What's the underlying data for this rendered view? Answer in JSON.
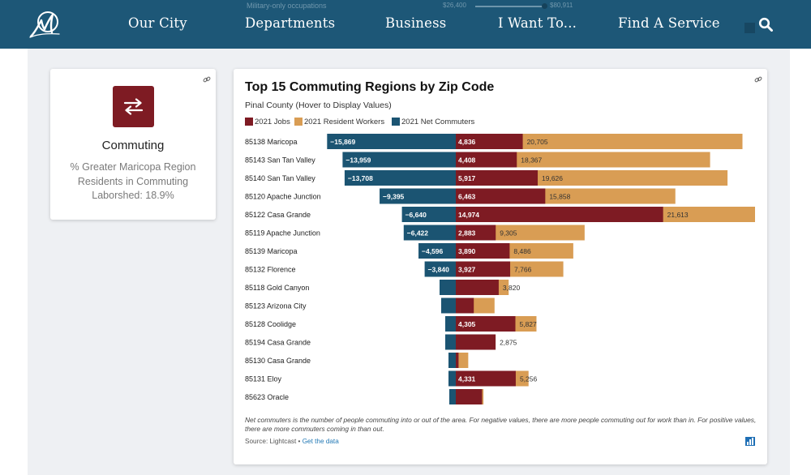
{
  "nav": {
    "items": [
      "Our City",
      "Departments",
      "Business",
      "I Want To...",
      "Find A Service"
    ]
  },
  "behind": {
    "label": "Military-only occupations",
    "value_left": "$26,400",
    "value_right": "$80,911"
  },
  "commute_card": {
    "title": "Commuting",
    "description": "% Greater Maricopa Region Residents in Commuting Laborshed: 18.9%"
  },
  "chart_card": {
    "title": "Top 15 Commuting Regions by Zip Code",
    "subtitle": "Pinal County (Hover to Display Values)",
    "footnote": "Net commuters is the number of people commuting into or out of the area. For negative values, there are more people commuting out for work than in. For positive values, there are more commuters coming in than out.",
    "source_prefix": "Source: Lightcast • ",
    "source_link": "Get the data"
  },
  "colors": {
    "nav": "#1d5777",
    "jobs": "#7e1b23",
    "workers": "#d99d54",
    "net": "#1b5472"
  },
  "chart_data": {
    "type": "bar",
    "categories": [
      "85138 Maricopa",
      "85143 San Tan Valley",
      "85140 San Tan Valley",
      "85120 Apache Junction",
      "85122 Casa Grande",
      "85119 Apache Junction",
      "85139 Maricopa",
      "85132 Florence",
      "85118 Gold Canyon",
      "85123 Arizona City",
      "85128 Coolidge",
      "85194 Casa Grande",
      "85130 Casa Grande",
      "85131 Eloy",
      "85623 Oracle"
    ],
    "series": [
      {
        "name": "2021 Jobs",
        "values": [
          4836,
          4408,
          5917,
          6463,
          14974,
          2883,
          3890,
          3927,
          3100,
          1300,
          4305,
          2875,
          200,
          4331,
          1900
        ],
        "labels": [
          "4,836",
          "4,408",
          "5,917",
          "6,463",
          "14,974",
          "2,883",
          "3,890",
          "3,927",
          null,
          null,
          "4,305",
          null,
          null,
          "4,331",
          null
        ]
      },
      {
        "name": "2021 Resident Workers",
        "values": [
          20705,
          18367,
          19626,
          15858,
          21613,
          9305,
          8486,
          7766,
          3820,
          2800,
          5827,
          2875,
          900,
          5256,
          2000
        ],
        "labels": [
          "20,705",
          "18,367",
          "19,626",
          "15,858",
          "21,613",
          "9,305",
          "8,486",
          "7,766",
          "3,820",
          null,
          "5,827",
          "2,875",
          null,
          "5,256",
          null
        ]
      },
      {
        "name": "2021 Net Commuters",
        "values": [
          -15869,
          -13959,
          -13708,
          -9395,
          -6640,
          -6422,
          -4596,
          -3840,
          -2000,
          -1800,
          -1300,
          -1300,
          -900,
          -900,
          -800
        ],
        "labels": [
          "−15,869",
          "−13,959",
          "−13,708",
          "−9,395",
          "−6,640",
          "−6,422",
          "−4,596",
          "−3,840",
          null,
          null,
          null,
          null,
          null,
          null,
          null
        ]
      }
    ],
    "xlim": [
      -16000,
      21613
    ],
    "legend": "top-left",
    "grid": false
  }
}
